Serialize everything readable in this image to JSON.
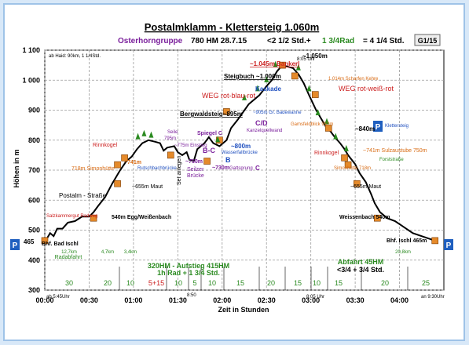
{
  "header": {
    "title": "Postalmklamm - Klettersteig 1.060m",
    "group": "Osterhorngruppe",
    "stats": "780 HM   28.7.15",
    "tail_1": "<2 1/2 Std.+",
    "tail_2": "1 3/4Rad",
    "tail_3": "= 4 1/4 Std.",
    "code": "G1/15"
  },
  "chart_data": {
    "type": "line",
    "title": "Postalmklamm - Klettersteig 1.060m",
    "xlabel": "Zeit in Stunden",
    "ylabel": "Höhen in m",
    "xlim": [
      0,
      4.5
    ],
    "ylim": [
      300,
      1100
    ],
    "x_ticks": [
      0,
      0.5,
      1,
      1.5,
      2,
      2.5,
      3,
      3.5,
      4
    ],
    "x_tick_labels": [
      "00:00",
      "00:30",
      "01:00",
      "01:30",
      "02:00",
      "02:30",
      "03:00",
      "03:30",
      "04:00"
    ],
    "y_ticks": [
      300,
      400,
      500,
      600,
      700,
      800,
      900,
      1000,
      1100
    ],
    "y_tick_labels": [
      "300",
      "400",
      "500",
      "600",
      "700",
      "800",
      "900",
      "1 000",
      "1 100"
    ],
    "grid": true,
    "series": [
      {
        "x": [
          0,
          0.02,
          0.06,
          0.1,
          0.14,
          0.2,
          0.26,
          0.34,
          0.42,
          0.5,
          0.55,
          0.6,
          0.68,
          0.76,
          0.85,
          0.92,
          0.98,
          1.04,
          1.1,
          1.17,
          1.24,
          1.3,
          1.34,
          1.38,
          1.46,
          1.5,
          1.55,
          1.6,
          1.63,
          1.68,
          1.72,
          1.8,
          1.85,
          1.9,
          1.97,
          2.05,
          2.1,
          2.18,
          2.24,
          2.3,
          2.36,
          2.42,
          2.5,
          2.56,
          2.62,
          2.68,
          2.74,
          2.8,
          2.86,
          2.92,
          2.98,
          3.06,
          3.12,
          3.18,
          3.22,
          3.27,
          3.33,
          3.38,
          3.42,
          3.46,
          3.5,
          3.55,
          3.62,
          3.68,
          3.72,
          3.78,
          3.86,
          3.95,
          4.05,
          4.15,
          4.25,
          4.4
        ],
        "values": [
          465,
          470,
          490,
          480,
          505,
          505,
          525,
          530,
          545,
          545,
          560,
          580,
          610,
          655,
          700,
          730,
          745,
          770,
          790,
          800,
          795,
          790,
          765,
          775,
          780,
          760,
          750,
          760,
          735,
          730,
          770,
          790,
          810,
          790,
          780,
          800,
          840,
          870,
          895,
          920,
          935,
          950,
          980,
          1000,
          1030,
          1050,
          1045,
          1040,
          1020,
          990,
          950,
          900,
          870,
          840,
          830,
          810,
          790,
          770,
          750,
          735,
          720,
          690,
          660,
          620,
          590,
          560,
          540,
          530,
          510,
          490,
          480,
          465
        ]
      }
    ],
    "points": [
      {
        "x": 0.0,
        "y": 465,
        "label": "Bhf. Bad Ischl"
      },
      {
        "x": 0.55,
        "y": 540,
        "label": "540m Egg/Weißenbach"
      },
      {
        "x": 0.82,
        "y": 655,
        "label": "~655m Maut"
      },
      {
        "x": 0.82,
        "y": 718,
        "label": "718m Simonhütte"
      },
      {
        "x": 0.9,
        "y": 741,
        "label": "~741m"
      },
      {
        "x": 1.42,
        "y": 750,
        "label": "~750m"
      },
      {
        "x": 1.83,
        "y": 730,
        "label": "~730m"
      },
      {
        "x": 1.97,
        "y": 800,
        "label": "~800m"
      },
      {
        "x": 2.05,
        "y": 895,
        "label": "Bergwaldsteig~895m"
      },
      {
        "x": 2.68,
        "y": 1050,
        "label": "~1.050m"
      },
      {
        "x": 2.82,
        "y": 1014,
        "label": "1.014m"
      },
      {
        "x": 3.05,
        "y": 952,
        "label": "952m"
      },
      {
        "x": 3.2,
        "y": 840,
        "label": "~840m"
      },
      {
        "x": 3.38,
        "y": 741,
        "label": "~741m"
      },
      {
        "x": 3.42,
        "y": 718,
        "label": "718m"
      },
      {
        "x": 3.52,
        "y": 655,
        "label": "~655m Maut"
      },
      {
        "x": 3.75,
        "y": 540,
        "label": "Weissenbach 540m"
      },
      {
        "x": 4.4,
        "y": 465,
        "label": "Bhf. Ischl 465m"
      }
    ]
  },
  "annotations": {
    "top_left_note": "ab Haid: 90km, 1 1/4Std.",
    "bankerl": "~1.045m Bankerl",
    "steigbuch": "Steigbuch ~1.000m",
    "weg_left": "WEG rot-blau-rot",
    "weg_right": "WEG rot-weiß-rot",
    "kaskade": "Kaskade",
    "bergwaldsteig": "Bergwaldsteig~895m",
    "gr_badewanne": "~905m Gr. Badewanne",
    "cd": "C/D",
    "kanzelquellwand": "Kanzelquellwand",
    "scharfen": "1.014m Scharfen Kehre",
    "gamsfeld": "Gamsfeldblick 952m",
    "klettersteig": "Klettersteig",
    "rinnkogel_left": "Rinnkogel",
    "rinnkogel_right": "Rinnkogel",
    "simonhuette_left": "718m Simonhütte",
    "simonhuette_right": "Simonhütte 718m",
    "rutschbach": "Rutschbachbrücke",
    "seile": "Seile",
    "seile_m": "795m",
    "einstieg": "~775m Einstieg",
    "spiegel": "Spiegel C",
    "bc": "B-C",
    "wasserfall": "Wasserfallbrücke",
    "b": "B",
    "seilzer": "Seilzer",
    "bruecke": "Brücke",
    "gattsprung": "Gattsprung",
    "c_after": "C",
    "set_anlegen": "Set anlegen",
    "sulzaustube": "~741m Sulzaustube 750m",
    "forststrasse": "Forststraße",
    "postalm": "Postalm - Straße",
    "salzkammergut": "Salzkammergut Radweg",
    "radabfahrt": "Radabfahrt",
    "dist_12": "12,7km",
    "dist_47": "4,7km",
    "dist_34": "3,4km",
    "dist_208": "20,8km",
    "aufstieg_1": "320HM - Aufstieg 415HM",
    "aufstieg_2": "1h Rad + 1 3/4 Std.",
    "abfahrt_1": "Abfahrt 45HM",
    "abfahrt_2": "<3/4 + 3/4 Std.",
    "start_time": "ab 5:45Uhr",
    "mid_time": "8:05 Uhr",
    "time_850": "8:50",
    "end_time": "an 9:30Uhr",
    "side_465": "465",
    "p_label": "P"
  },
  "segments": [
    "30",
    "20",
    "10",
    "5+15",
    "10",
    "5",
    "10",
    "15",
    "20",
    "15",
    "10",
    "15",
    "20",
    "25"
  ],
  "colors": {
    "line": "#000000",
    "grid": "#9b9b9b",
    "title": "#000000",
    "purple": "#7a1f9b",
    "green": "#2a8a20",
    "red": "#cc2020",
    "orange": "#d86a12",
    "blue": "#1f4fbf",
    "bg": "#ffffff"
  }
}
